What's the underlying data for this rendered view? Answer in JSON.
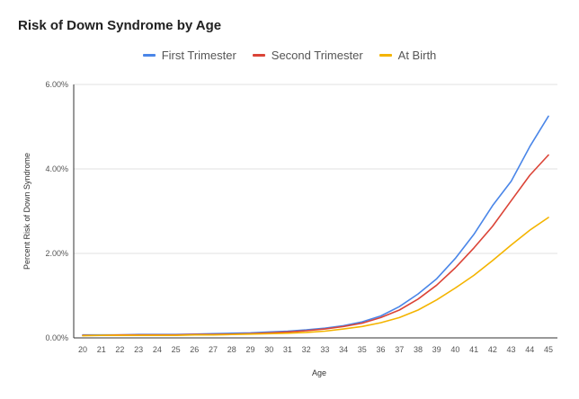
{
  "chart_data": {
    "type": "line",
    "title": "Risk of Down Syndrome by Age",
    "xlabel": "Age",
    "ylabel": "Percent Risk of Down Syndrome",
    "x": [
      20,
      21,
      22,
      23,
      24,
      25,
      26,
      27,
      28,
      29,
      30,
      31,
      32,
      33,
      34,
      35,
      36,
      37,
      38,
      39,
      40,
      41,
      42,
      43,
      44,
      45
    ],
    "ylim": [
      0,
      6
    ],
    "y_ticks": [
      0,
      2,
      4,
      6
    ],
    "y_tick_labels": [
      "0.00%",
      "2.00%",
      "4.00%",
      "6.00%"
    ],
    "grid": true,
    "legend_position": "top",
    "series": [
      {
        "name": "First Trimester",
        "color": "#4a86e8",
        "values": [
          0.07,
          0.07,
          0.07,
          0.08,
          0.08,
          0.08,
          0.09,
          0.1,
          0.11,
          0.12,
          0.14,
          0.16,
          0.19,
          0.23,
          0.29,
          0.38,
          0.52,
          0.74,
          1.04,
          1.4,
          1.88,
          2.45,
          3.13,
          3.71,
          4.53,
          5.25
        ]
      },
      {
        "name": "Second Trimester",
        "color": "#db4437",
        "values": [
          0.06,
          0.06,
          0.07,
          0.07,
          0.07,
          0.07,
          0.08,
          0.08,
          0.09,
          0.1,
          0.12,
          0.14,
          0.17,
          0.21,
          0.27,
          0.35,
          0.48,
          0.66,
          0.92,
          1.25,
          1.66,
          2.13,
          2.64,
          3.25,
          3.85,
          4.33
        ]
      },
      {
        "name": "At Birth",
        "color": "#f4b400",
        "values": [
          0.05,
          0.06,
          0.06,
          0.06,
          0.06,
          0.06,
          0.07,
          0.07,
          0.08,
          0.09,
          0.1,
          0.11,
          0.13,
          0.16,
          0.21,
          0.27,
          0.36,
          0.48,
          0.66,
          0.9,
          1.18,
          1.48,
          1.83,
          2.2,
          2.55,
          2.85
        ]
      }
    ]
  }
}
